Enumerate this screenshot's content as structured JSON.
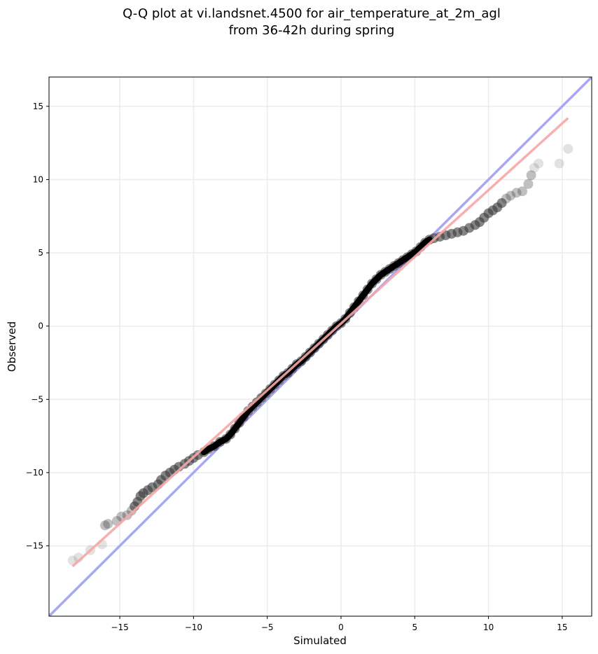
{
  "title_line1": "Q-Q plot at vi.landsnet.4500 for air_temperature_at_2m_agl",
  "title_line2": "from 36-42h during spring",
  "chart_data": {
    "type": "scatter",
    "title": "Q-Q plot at vi.landsnet.4500 for air_temperature_at_2m_agl from 36-42h during spring",
    "xlabel": "Simulated",
    "ylabel": "Observed",
    "xlim": [
      -19.8,
      17.0
    ],
    "ylim": [
      -19.8,
      17.0
    ],
    "xticks": [
      -15,
      -10,
      -5,
      0,
      5,
      10,
      15
    ],
    "yticks": [
      15,
      10,
      5,
      0,
      -5,
      -10,
      -15
    ],
    "grid": true,
    "reference_line": {
      "color": "#a7a7f7",
      "x": [
        -19.8,
        17.0
      ],
      "y": [
        -19.8,
        17.0
      ]
    },
    "fit_line": {
      "color": "#f7a6a6",
      "x": [
        -18.2,
        15.4
      ],
      "y": [
        -16.4,
        14.2
      ]
    },
    "point_color": "#3c3c3c",
    "points": [
      [
        -18.2,
        -16.0
      ],
      [
        -17.8,
        -15.8
      ],
      [
        -17.0,
        -15.3
      ],
      [
        -16.2,
        -14.9
      ],
      [
        -16.0,
        -13.6
      ],
      [
        -15.8,
        -13.5
      ],
      [
        -15.2,
        -13.3
      ],
      [
        -14.9,
        -13.0
      ],
      [
        -14.5,
        -12.9
      ],
      [
        -14.2,
        -12.6
      ],
      [
        -14.0,
        -12.3
      ],
      [
        -13.8,
        -12.0
      ],
      [
        -13.6,
        -11.6
      ],
      [
        -13.4,
        -11.4
      ],
      [
        -13.1,
        -11.2
      ],
      [
        -12.8,
        -11.0
      ],
      [
        -12.4,
        -10.8
      ],
      [
        -12.2,
        -10.5
      ],
      [
        -11.9,
        -10.2
      ],
      [
        -11.6,
        -10.0
      ],
      [
        -11.3,
        -9.8
      ],
      [
        -11.0,
        -9.6
      ],
      [
        -10.6,
        -9.4
      ],
      [
        -10.3,
        -9.2
      ],
      [
        -10.0,
        -9.0
      ],
      [
        -9.7,
        -8.8
      ],
      [
        -9.3,
        -8.6
      ],
      [
        -9.0,
        -8.4
      ],
      [
        -8.6,
        -8.2
      ],
      [
        -8.2,
        -7.9
      ],
      [
        -7.8,
        -7.7
      ],
      [
        -7.5,
        -7.4
      ],
      [
        -7.2,
        -7.0
      ],
      [
        -6.9,
        -6.6
      ],
      [
        -6.6,
        -6.2
      ],
      [
        -6.3,
        -5.8
      ],
      [
        -6.0,
        -5.5
      ],
      [
        -5.7,
        -5.2
      ],
      [
        -5.4,
        -4.9
      ],
      [
        -5.1,
        -4.6
      ],
      [
        -4.8,
        -4.3
      ],
      [
        -4.5,
        -4.0
      ],
      [
        -4.2,
        -3.7
      ],
      [
        -3.9,
        -3.4
      ],
      [
        -3.6,
        -3.2
      ],
      [
        -3.3,
        -2.9
      ],
      [
        -3.0,
        -2.6
      ],
      [
        -2.7,
        -2.4
      ],
      [
        -2.4,
        -2.1
      ],
      [
        -2.1,
        -1.8
      ],
      [
        -1.8,
        -1.5
      ],
      [
        -1.5,
        -1.2
      ],
      [
        -1.2,
        -0.9
      ],
      [
        -0.9,
        -0.6
      ],
      [
        -0.6,
        -0.3
      ],
      [
        -0.3,
        0.0
      ],
      [
        0.0,
        0.2
      ],
      [
        0.3,
        0.5
      ],
      [
        0.6,
        0.9
      ],
      [
        0.9,
        1.3
      ],
      [
        1.2,
        1.7
      ],
      [
        1.5,
        2.1
      ],
      [
        1.8,
        2.5
      ],
      [
        2.1,
        2.9
      ],
      [
        2.4,
        3.2
      ],
      [
        2.7,
        3.5
      ],
      [
        3.0,
        3.7
      ],
      [
        3.3,
        3.9
      ],
      [
        3.6,
        4.1
      ],
      [
        3.9,
        4.3
      ],
      [
        4.2,
        4.5
      ],
      [
        4.5,
        4.7
      ],
      [
        4.8,
        4.9
      ],
      [
        5.1,
        5.1
      ],
      [
        5.4,
        5.4
      ],
      [
        5.7,
        5.7
      ],
      [
        6.0,
        5.9
      ],
      [
        6.3,
        6.0
      ],
      [
        6.7,
        6.1
      ],
      [
        7.1,
        6.2
      ],
      [
        7.5,
        6.3
      ],
      [
        7.9,
        6.4
      ],
      [
        8.3,
        6.5
      ],
      [
        8.7,
        6.7
      ],
      [
        9.1,
        6.9
      ],
      [
        9.4,
        7.1
      ],
      [
        9.7,
        7.4
      ],
      [
        10.0,
        7.7
      ],
      [
        10.3,
        7.9
      ],
      [
        10.6,
        8.1
      ],
      [
        10.9,
        8.4
      ],
      [
        11.2,
        8.7
      ],
      [
        11.5,
        8.9
      ],
      [
        11.9,
        9.1
      ],
      [
        12.3,
        9.2
      ],
      [
        12.7,
        9.7
      ],
      [
        12.9,
        10.3
      ],
      [
        13.1,
        10.8
      ],
      [
        13.4,
        11.1
      ],
      [
        14.8,
        11.1
      ],
      [
        15.4,
        12.1
      ]
    ]
  }
}
